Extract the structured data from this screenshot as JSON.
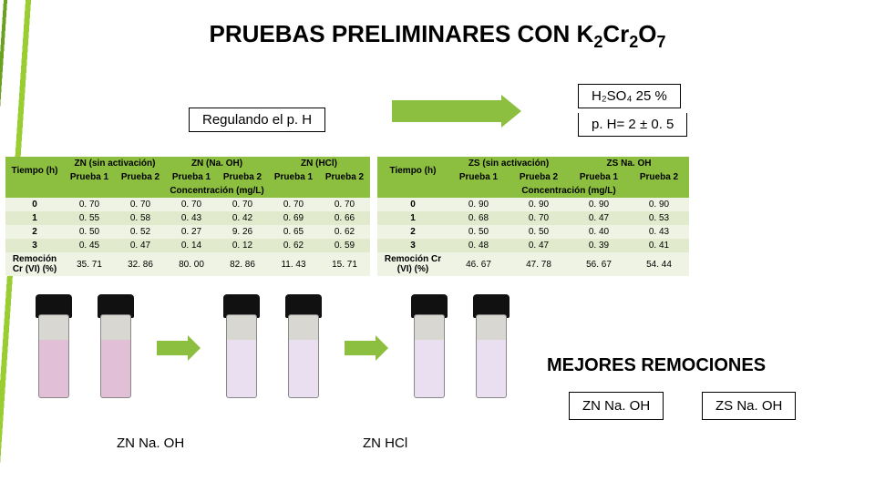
{
  "title_prefix": "PRUEBAS PRELIMINARES CON K",
  "title_formula_parts": [
    "2",
    "Cr",
    "2",
    "O",
    "7"
  ],
  "boxes": {
    "regulando": "Regulando el p. H",
    "h2so4": "H₂SO₄ 25 %",
    "ph": "p. H= 2 ± 0. 5"
  },
  "table_left": {
    "corner": "Tiempo (h)",
    "groups": [
      "ZN (sin activación)",
      "ZN (Na. OH)",
      "ZN (HCl)"
    ],
    "subcols": [
      "Prueba 1",
      "Prueba 2",
      "Prueba 1",
      "Prueba 2",
      "Prueba 1",
      "Prueba 2"
    ],
    "conc_row": "Concentración (mg/L)",
    "times": [
      "0",
      "1",
      "2",
      "3"
    ],
    "data": [
      [
        "0. 70",
        "0. 70",
        "0. 70",
        "0. 70",
        "0. 70",
        "0. 70"
      ],
      [
        "0. 55",
        "0. 58",
        "0. 43",
        "0. 42",
        "0. 69",
        "0. 66"
      ],
      [
        "0. 50",
        "0. 52",
        "0. 27",
        "9. 26",
        "0. 65",
        "0. 62"
      ],
      [
        "0. 45",
        "0. 47",
        "0. 14",
        "0. 12",
        "0. 62",
        "0. 59"
      ]
    ],
    "rem_label": "Remoción Cr (VI) (%)",
    "rem": [
      "35. 71",
      "32. 86",
      "80. 00",
      "82. 86",
      "11. 43",
      "15. 71"
    ]
  },
  "table_right": {
    "corner": "Tiempo (h)",
    "groups": [
      "ZS (sin activación)",
      "ZS Na. OH"
    ],
    "subcols": [
      "Prueba 1",
      "Prueba 2",
      "Prueba 1",
      "Prueba 2"
    ],
    "conc_row": "Concentración (mg/L)",
    "times": [
      "0",
      "1",
      "2",
      "3"
    ],
    "data": [
      [
        "0. 90",
        "0. 90",
        "0. 90",
        "0. 90"
      ],
      [
        "0. 68",
        "0. 70",
        "0. 47",
        "0. 53"
      ],
      [
        "0. 50",
        "0. 50",
        "0. 40",
        "0. 43"
      ],
      [
        "0. 48",
        "0. 47",
        "0. 39",
        "0. 41"
      ]
    ],
    "rem_label": "Remoción Cr (VI) (%)",
    "rem": [
      "46. 67",
      "47. 78",
      "56. 67",
      "54. 44"
    ]
  },
  "mejores": "MEJORES REMOCIONES",
  "best": [
    "ZN Na. OH",
    "ZS Na. OH"
  ],
  "captions": [
    "ZN Na. OH",
    "ZN HCl"
  ],
  "colors": {
    "accent": "#8cbf3f",
    "row_a": "#eef3e3",
    "row_b": "#e2eacd"
  }
}
